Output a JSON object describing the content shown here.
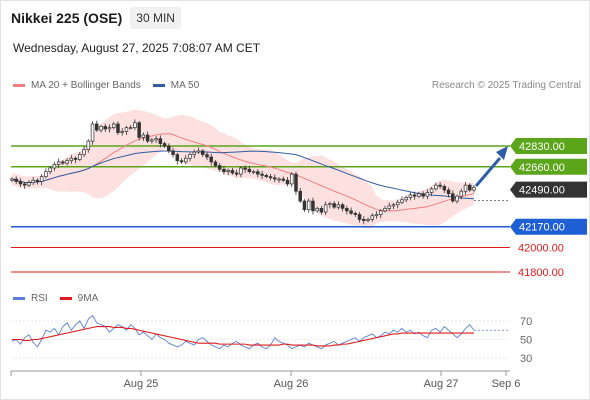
{
  "header": {
    "title": "Nikkei 225 (OSE)",
    "timeframe": "30 MIN",
    "datetime": "Wednesday, August 27, 2025 7:08:07 AM CET"
  },
  "legend": {
    "ma20": {
      "label": "MA 20 + Bollinger Bands",
      "color": "#f08080"
    },
    "ma50": {
      "label": "MA 50",
      "color": "#2f5f9f"
    },
    "credit": "Research © 2025 Trading Central"
  },
  "rsi_legend": {
    "rsi": {
      "label": "RSI",
      "color": "#5b7fd6"
    },
    "ma9": {
      "label": "9MA",
      "color": "#e01b1b"
    }
  },
  "colors": {
    "resistance": "#5aa51a",
    "support": "#1f5fd6",
    "target": "#e01b1b",
    "current": "#333333",
    "candle": "#333333",
    "arrow": "#2d5fa6",
    "band": "#fde0e0"
  },
  "chart_data": [
    {
      "type": "candlestick",
      "title": "Nikkei 225 (OSE)",
      "ylim": [
        41700,
        43100
      ],
      "x_ticks": [
        "Aug 25",
        "Aug 26",
        "Aug 27",
        "Sep 6"
      ],
      "levels": [
        {
          "label": "42830.00",
          "value": 42830,
          "kind": "resistance"
        },
        {
          "label": "42660.00",
          "value": 42660,
          "kind": "resistance"
        },
        {
          "label": "42490.00",
          "value": 42490,
          "kind": "current"
        },
        {
          "label": "42170.00",
          "value": 42170,
          "kind": "support"
        },
        {
          "label": "42000.00",
          "value": 42000,
          "kind": "target"
        },
        {
          "label": "41800.00",
          "value": 41800,
          "kind": "target"
        }
      ],
      "close": [
        42560,
        42540,
        42520,
        42510,
        42530,
        42550,
        42540,
        42580,
        42620,
        42650,
        42680,
        42700,
        42690,
        42710,
        42730,
        42720,
        42760,
        42800,
        42870,
        43010,
        42960,
        42990,
        42970,
        42980,
        43010,
        42940,
        42950,
        42980,
        42980,
        43020,
        42900,
        42920,
        42870,
        42880,
        42890,
        42850,
        42830,
        42790,
        42760,
        42710,
        42700,
        42730,
        42760,
        42780,
        42790,
        42760,
        42740,
        42700,
        42670,
        42640,
        42620,
        42630,
        42610,
        42600,
        42650,
        42640,
        42620,
        42620,
        42600,
        42590,
        42580,
        42570,
        42560,
        42560,
        42550,
        42520,
        42600,
        42460,
        42380,
        42310,
        42380,
        42300,
        42320,
        42290,
        42350,
        42360,
        42330,
        42350,
        42320,
        42300,
        42280,
        42270,
        42230,
        42220,
        42230,
        42260,
        42270,
        42300,
        42320,
        42340,
        42350,
        42370,
        42390,
        42410,
        42430,
        42420,
        42440,
        42420,
        42450,
        42480,
        42510,
        42500,
        42470,
        42440,
        42380,
        42420,
        42460,
        42510,
        42470,
        42490
      ]
    },
    {
      "type": "line",
      "title": "RSI",
      "ylim": [
        20,
        80
      ],
      "y_ticks": [
        70,
        50,
        30
      ],
      "series": [
        {
          "name": "RSI",
          "values": [
            48,
            50,
            45,
            52,
            55,
            47,
            42,
            50,
            60,
            58,
            62,
            55,
            64,
            68,
            60,
            66,
            70,
            62,
            72,
            76,
            68,
            66,
            64,
            58,
            62,
            66,
            64,
            60,
            66,
            62,
            55,
            58,
            54,
            50,
            56,
            52,
            50,
            46,
            44,
            42,
            44,
            48,
            46,
            44,
            50,
            52,
            48,
            44,
            42,
            40,
            44,
            42,
            46,
            48,
            44,
            42,
            40,
            44,
            46,
            42,
            40,
            44,
            52,
            48,
            46,
            44,
            40,
            42,
            44,
            42,
            46,
            44,
            42,
            40,
            44,
            46,
            48,
            44,
            46,
            48,
            50,
            52,
            48,
            52,
            54,
            56,
            52,
            54,
            58,
            56,
            60,
            58,
            62,
            58,
            60,
            56,
            58,
            54,
            52,
            60,
            62,
            58,
            64,
            60,
            56,
            52,
            56,
            62,
            66,
            60
          ]
        },
        {
          "name": "9MA",
          "values": [
            50,
            50,
            50,
            49,
            49,
            50,
            50,
            51,
            52,
            53,
            54,
            55,
            56,
            57,
            58,
            59,
            60,
            61,
            62,
            63,
            64,
            64,
            64,
            64,
            63,
            63,
            63,
            62,
            62,
            61,
            60,
            59,
            58,
            57,
            56,
            55,
            54,
            53,
            52,
            51,
            50,
            49,
            48,
            47,
            46,
            46,
            46,
            46,
            46,
            45,
            45,
            45,
            45,
            45,
            45,
            45,
            44,
            44,
            44,
            44,
            44,
            44,
            44,
            44,
            45,
            45,
            44,
            44,
            44,
            44,
            44,
            44,
            43,
            43,
            43,
            43,
            44,
            44,
            45,
            45,
            46,
            47,
            48,
            49,
            50,
            51,
            52,
            53,
            54,
            55,
            56,
            56,
            57,
            57,
            57,
            57,
            57,
            57,
            57,
            57,
            57,
            57,
            57,
            57,
            57,
            57,
            57,
            57,
            57,
            57
          ]
        }
      ]
    }
  ]
}
